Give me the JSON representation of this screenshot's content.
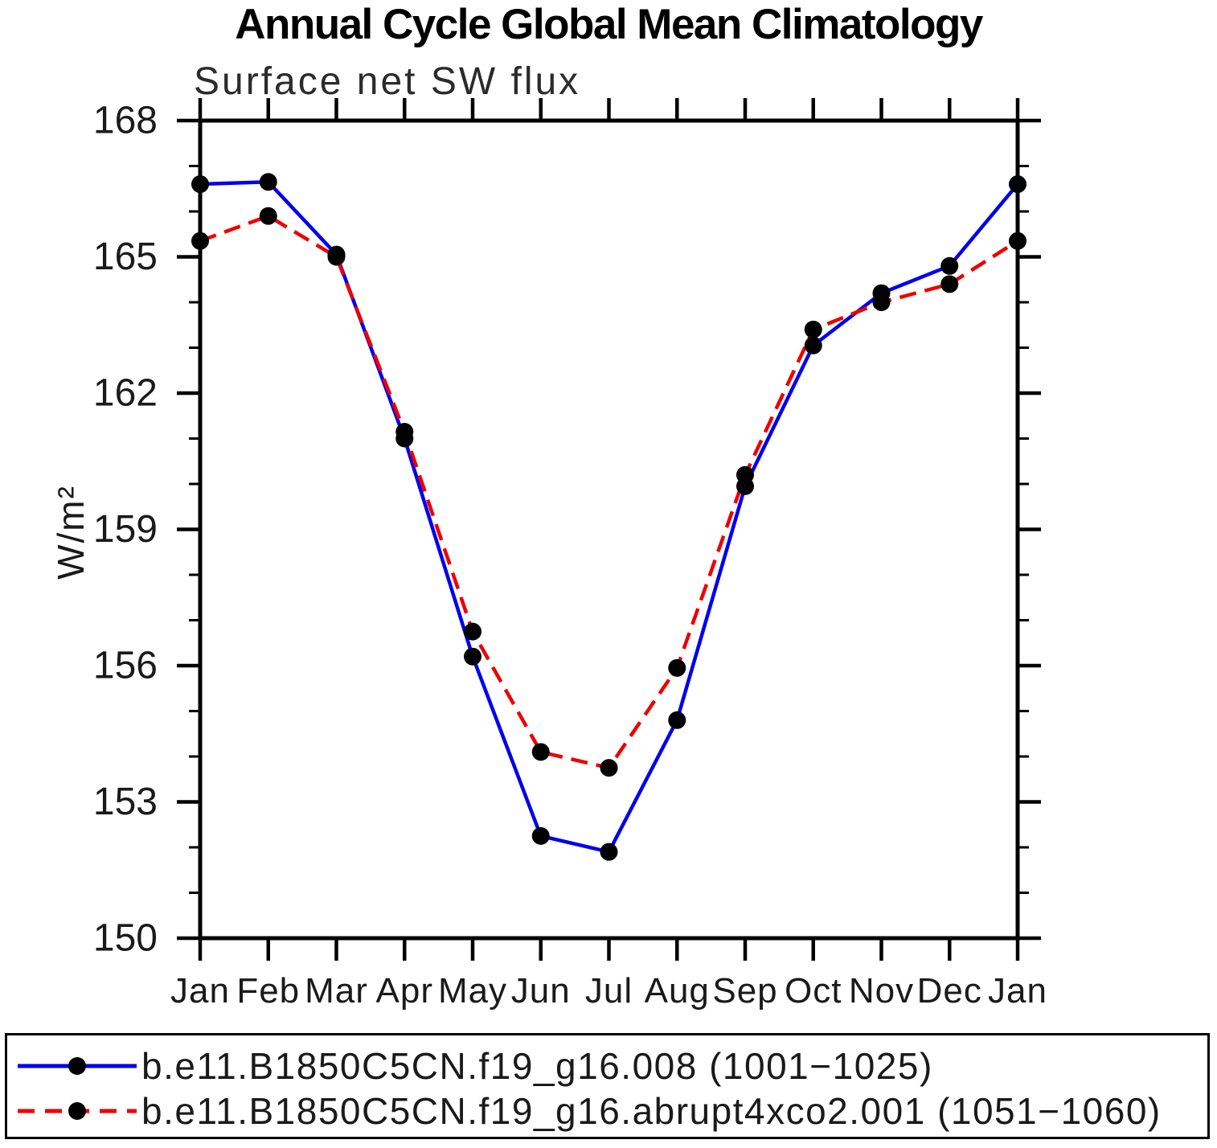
{
  "title": "Annual Cycle Global Mean Climatology",
  "subtitle": "Surface net SW flux",
  "y_axis_label": "W/m²",
  "chart_data": {
    "type": "line",
    "title": "Annual Cycle Global Mean Climatology",
    "subtitle": "Surface net SW flux",
    "xlabel": "",
    "ylabel": "W/m²",
    "categories": [
      "Jan",
      "Feb",
      "Mar",
      "Apr",
      "May",
      "Jun",
      "Jul",
      "Aug",
      "Sep",
      "Oct",
      "Nov",
      "Dec",
      "Jan"
    ],
    "series": [
      {
        "name": "b.e11.B1850C5CN.f19_g16.008 (1001−1025)",
        "color": "#0000ee",
        "line_style": "solid",
        "marker": "filled-circle",
        "values": [
          166.6,
          166.65,
          165.05,
          161.0,
          156.2,
          152.25,
          151.9,
          154.8,
          159.95,
          163.05,
          164.2,
          164.8,
          166.6
        ]
      },
      {
        "name": "b.e11.B1850C5CN.f19_g16.abrupt4xco2.001 (1051−1060)",
        "color": "#ee0000",
        "line_style": "dashed",
        "marker": "filled-circle",
        "values": [
          165.35,
          165.9,
          165.0,
          161.15,
          156.75,
          154.1,
          153.75,
          155.95,
          160.2,
          163.4,
          164.0,
          164.4,
          165.35
        ]
      }
    ],
    "ylim": [
      150,
      168
    ],
    "y_major_ticks": [
      150,
      153,
      156,
      159,
      162,
      165,
      168
    ],
    "y_minor_step": 1,
    "marker_color": "#000000",
    "axis_color": "#000000",
    "grid": "off",
    "legend_position": "bottom"
  }
}
